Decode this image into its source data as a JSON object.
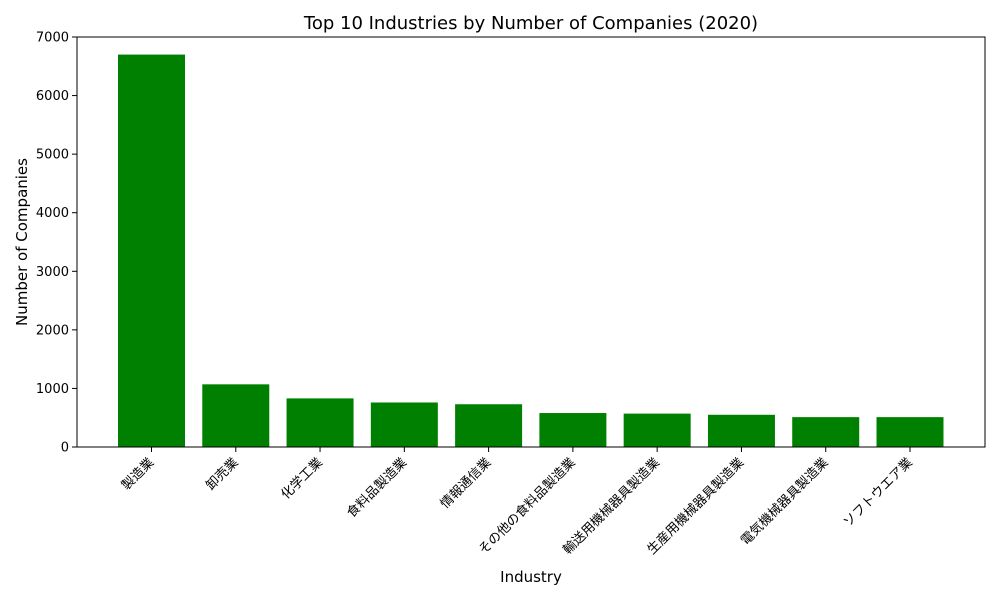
{
  "chart_data": {
    "type": "bar",
    "title": "Top 10 Industries by Number of Companies (2020)",
    "xlabel": "Industry",
    "ylabel": "Number of Companies",
    "categories": [
      "製造業",
      "卸売業",
      "化学工業",
      "食料品製造業",
      "情報通信業",
      "その他の食料品製造業",
      "輸送用機械器具製造業",
      "生産用機械器具製造業",
      "電気機械器具製造業",
      "ソフトウエア業"
    ],
    "values": [
      6700,
      1070,
      830,
      760,
      730,
      580,
      570,
      550,
      510,
      510
    ],
    "ylim": [
      0,
      7000
    ],
    "yticks": [
      0,
      1000,
      2000,
      3000,
      4000,
      5000,
      6000,
      7000
    ],
    "grid": false,
    "bar_color": "#008000"
  }
}
